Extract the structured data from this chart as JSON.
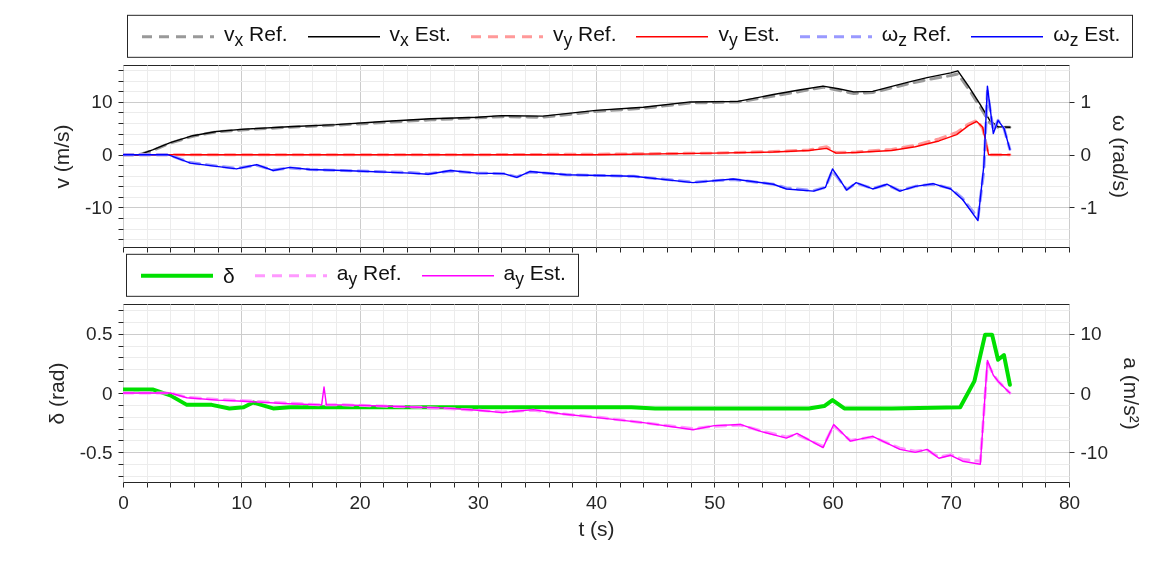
{
  "chart_data": [
    {
      "type": "line",
      "ylabel": "v (m/s)",
      "y2label": "ω (rad/s)",
      "xlim": [
        0,
        80
      ],
      "xticks": [
        0,
        {
          "value": 2,
          "label": null
        },
        {
          "value": 4,
          "label": null
        },
        {
          "value": 6,
          "label": null
        },
        {
          "value": 8,
          "label": null
        },
        10,
        {
          "value": 12,
          "label": null
        },
        {
          "value": 14,
          "label": null
        },
        {
          "value": 16,
          "label": null
        },
        {
          "value": 18,
          "label": null
        },
        20,
        {
          "value": 22,
          "label": null
        },
        {
          "value": 24,
          "label": null
        },
        {
          "value": 26,
          "label": null
        },
        {
          "value": 28,
          "label": null
        },
        30,
        {
          "value": 32,
          "label": null
        },
        {
          "value": 34,
          "label": null
        },
        {
          "value": 36,
          "label": null
        },
        {
          "value": 38,
          "label": null
        },
        40,
        {
          "value": 42,
          "label": null
        },
        {
          "value": 44,
          "label": null
        },
        {
          "value": 46,
          "label": null
        },
        {
          "value": 48,
          "label": null
        },
        50,
        {
          "value": 52,
          "label": null
        },
        {
          "value": 54,
          "label": null
        },
        {
          "value": 56,
          "label": null
        },
        {
          "value": 58,
          "label": null
        },
        60,
        {
          "value": 62,
          "label": null
        },
        {
          "value": 64,
          "label": null
        },
        {
          "value": 66,
          "label": null
        },
        {
          "value": 68,
          "label": null
        },
        70,
        {
          "value": 72,
          "label": null
        },
        {
          "value": 74,
          "label": null
        },
        {
          "value": 76,
          "label": null
        },
        {
          "value": 78,
          "label": null
        },
        80
      ],
      "ylim": [
        -17.5,
        17
      ],
      "yticks": [
        {
          "value": -16,
          "label": null
        },
        {
          "value": -14,
          "label": null
        },
        {
          "value": -12,
          "label": null
        },
        -10,
        {
          "value": -8,
          "label": null
        },
        {
          "value": -6,
          "label": null
        },
        {
          "value": -4,
          "label": null
        },
        {
          "value": -2,
          "label": null
        },
        0,
        {
          "value": 2,
          "label": null
        },
        {
          "value": 4,
          "label": null
        },
        {
          "value": 6,
          "label": null
        },
        {
          "value": 8,
          "label": null
        },
        10,
        {
          "value": 12,
          "label": null
        },
        {
          "value": 14,
          "label": null
        },
        {
          "value": 16,
          "label": null
        }
      ],
      "y2lim": [
        -1.75,
        1.7
      ],
      "y2ticks": [
        -1,
        0,
        1
      ],
      "grid": true,
      "legend": "top",
      "tick_labels": "y",
      "series": [
        {
          "name": "v$_{x}$ Ref.",
          "color": "#999999",
          "line_style": "dashed",
          "x": [
            0,
            1.4,
            2.5,
            4,
            5.9,
            7.9,
            10,
            14,
            18,
            22,
            26,
            30,
            32,
            35.5,
            40,
            44,
            48,
            52,
            55,
            57.3,
            59.2,
            60.5,
            61.8,
            63.4,
            65.1,
            66.5,
            68,
            70,
            70.6,
            71.5,
            72.5,
            73.3,
            74,
            75
          ],
          "values": [
            0,
            0,
            0.8,
            2.2,
            3.5,
            4.3,
            4.7,
            5.2,
            5.6,
            6.1,
            6.6,
            7.0,
            7.2,
            7.1,
            8.2,
            8.8,
            9.8,
            10.0,
            11.1,
            12.0,
            12.8,
            12.2,
            11.6,
            11.8,
            12.7,
            13.5,
            14.2,
            15.0,
            15.3,
            12.5,
            9,
            6,
            5.2,
            5.2
          ]
        },
        {
          "name": "v$_{x}$ Est.",
          "color": "#000000",
          "x": [
            0,
            1.4,
            2.5,
            4,
            5.9,
            7.9,
            10,
            14,
            18,
            22,
            26,
            30,
            32,
            35.5,
            40,
            44,
            48,
            52,
            55,
            57.3,
            59.2,
            60.5,
            61.8,
            63.4,
            65.1,
            66.5,
            68,
            70,
            70.6,
            71.5,
            72.5,
            73.3,
            74,
            75
          ],
          "values": [
            0,
            0,
            0.9,
            2.3,
            3.6,
            4.4,
            4.8,
            5.3,
            5.7,
            6.3,
            6.8,
            7.1,
            7.4,
            7.3,
            8.4,
            9.0,
            10.0,
            10.1,
            11.4,
            12.3,
            13.0,
            12.5,
            11.9,
            12.0,
            13.0,
            13.8,
            14.6,
            15.5,
            15.9,
            13,
            9.5,
            6.5,
            5.3,
            5.2
          ]
        },
        {
          "name": "v$_{y}$ Ref.",
          "color": "#ff9999",
          "line_style": "dashed",
          "x": [
            0,
            10,
            20,
            30,
            40,
            50,
            55,
            58,
            59.5,
            60.3,
            62,
            65,
            67,
            69,
            70.5,
            71.5,
            72.2,
            72.7,
            73.2,
            74,
            75
          ],
          "values": [
            0,
            0,
            0,
            0,
            0.1,
            0.3,
            0.6,
            0.9,
            1.5,
            0.4,
            0.5,
            1.0,
            1.8,
            3.0,
            4.2,
            5.8,
            6.5,
            5.0,
            0,
            0,
            0
          ]
        },
        {
          "name": "v$_{y}$ Est.",
          "color": "#ff0000",
          "x": [
            0,
            10,
            20,
            30,
            40,
            50,
            55,
            58,
            59.5,
            60.3,
            62,
            65,
            67,
            69,
            70.5,
            71.5,
            72.2,
            72.7,
            73.2,
            74,
            75
          ],
          "values": [
            0,
            0,
            0,
            0,
            0,
            0.3,
            0.5,
            0.8,
            1.2,
            0.3,
            0.4,
            0.8,
            1.5,
            2.6,
            3.8,
            5.5,
            6.3,
            5.2,
            0,
            0,
            0
          ]
        },
        {
          "name": "ω$_{z}$ Ref.",
          "color": "#9999ff",
          "line_style": "dashed",
          "axis": "y2",
          "x": [
            0,
            3.8,
            5.7,
            9.6,
            11.3,
            12.7,
            14.1,
            15.8,
            18.6,
            24.3,
            25.8,
            27.7,
            29.9,
            32.2,
            33.3,
            34.4,
            37.5,
            43.2,
            48.2,
            51.6,
            55,
            56.1,
            58.4,
            59.4,
            60,
            61.2,
            62,
            63.4,
            64.6,
            65.7,
            67,
            68.5,
            70,
            71,
            72.3,
            72.8,
            73.1,
            73.6,
            74,
            74.5,
            75
          ],
          "values": [
            0,
            0,
            -0.15,
            -0.26,
            -0.2,
            -0.29,
            -0.25,
            -0.28,
            -0.3,
            -0.34,
            -0.36,
            -0.31,
            -0.35,
            -0.36,
            -0.42,
            -0.33,
            -0.38,
            -0.41,
            -0.52,
            -0.47,
            -0.56,
            -0.63,
            -0.68,
            -0.62,
            -0.3,
            -0.66,
            -0.54,
            -0.64,
            -0.57,
            -0.68,
            -0.6,
            -0.56,
            -0.64,
            -0.83,
            -1.2,
            -0.3,
            1.2,
            0.45,
            0.65,
            0.5,
            0.1
          ]
        },
        {
          "name": "ω$_{z}$ Est.",
          "color": "#0000ff",
          "axis": "y2",
          "x": [
            0,
            3.8,
            5.7,
            9.6,
            11.3,
            12.7,
            14.1,
            15.8,
            18.6,
            24.3,
            25.8,
            27.7,
            29.9,
            32.2,
            33.3,
            34.4,
            37.5,
            43.2,
            48.2,
            51.6,
            55,
            56.1,
            58.4,
            59.4,
            60,
            61.2,
            62,
            63.4,
            64.6,
            65.7,
            67,
            68.5,
            70,
            71,
            72.3,
            72.8,
            73.1,
            73.6,
            74,
            74.5,
            75
          ],
          "values": [
            0,
            0,
            -0.16,
            -0.27,
            -0.19,
            -0.3,
            -0.24,
            -0.28,
            -0.3,
            -0.35,
            -0.37,
            -0.3,
            -0.35,
            -0.36,
            -0.43,
            -0.32,
            -0.38,
            -0.41,
            -0.53,
            -0.46,
            -0.56,
            -0.65,
            -0.69,
            -0.62,
            -0.27,
            -0.67,
            -0.53,
            -0.65,
            -0.56,
            -0.69,
            -0.6,
            -0.55,
            -0.65,
            -0.85,
            -1.25,
            -0.2,
            1.3,
            0.4,
            0.65,
            0.5,
            0.1
          ]
        }
      ]
    },
    {
      "type": "line",
      "xlabel": "t (s)",
      "ylabel": "δ (rad)",
      "y2label": "a (m/s²)",
      "xlim": [
        0,
        80
      ],
      "xticks": [
        0,
        {
          "value": 2,
          "label": null
        },
        {
          "value": 4,
          "label": null
        },
        {
          "value": 6,
          "label": null
        },
        {
          "value": 8,
          "label": null
        },
        10,
        {
          "value": 12,
          "label": null
        },
        {
          "value": 14,
          "label": null
        },
        {
          "value": 16,
          "label": null
        },
        {
          "value": 18,
          "label": null
        },
        20,
        {
          "value": 22,
          "label": null
        },
        {
          "value": 24,
          "label": null
        },
        {
          "value": 26,
          "label": null
        },
        {
          "value": 28,
          "label": null
        },
        30,
        {
          "value": 32,
          "label": null
        },
        {
          "value": 34,
          "label": null
        },
        {
          "value": 36,
          "label": null
        },
        {
          "value": 38,
          "label": null
        },
        40,
        {
          "value": 42,
          "label": null
        },
        {
          "value": 44,
          "label": null
        },
        {
          "value": 46,
          "label": null
        },
        {
          "value": 48,
          "label": null
        },
        50,
        {
          "value": 52,
          "label": null
        },
        {
          "value": 54,
          "label": null
        },
        {
          "value": 56,
          "label": null
        },
        {
          "value": 58,
          "label": null
        },
        60,
        {
          "value": 62,
          "label": null
        },
        {
          "value": 64,
          "label": null
        },
        {
          "value": 66,
          "label": null
        },
        {
          "value": 68,
          "label": null
        },
        70,
        {
          "value": 72,
          "label": null
        },
        {
          "value": 74,
          "label": null
        },
        {
          "value": 76,
          "label": null
        },
        {
          "value": 78,
          "label": null
        },
        80
      ],
      "ylim": [
        -0.75,
        0.75
      ],
      "yticks": [
        {
          "value": -0.7,
          "label": null
        },
        {
          "value": -0.6,
          "label": null
        },
        -0.5,
        {
          "value": -0.4,
          "label": null
        },
        {
          "value": -0.3,
          "label": null
        },
        {
          "value": -0.2,
          "label": null
        },
        {
          "value": -0.1,
          "label": null
        },
        0,
        {
          "value": 0.1,
          "label": null
        },
        {
          "value": 0.2,
          "label": null
        },
        {
          "value": 0.3,
          "label": null
        },
        {
          "value": 0.4,
          "label": null
        },
        0.5,
        {
          "value": 0.6,
          "label": null
        },
        {
          "value": 0.7,
          "label": null
        }
      ],
      "y2lim": [
        -15,
        15
      ],
      "y2ticks": [
        -10,
        0,
        10
      ],
      "grid": true,
      "legend": "top left",
      "series": [
        {
          "name": "δ",
          "color": "#00e000",
          "x": [
            0,
            2.5,
            4,
            5.4,
            7.5,
            9,
            10.2,
            11,
            12.7,
            14.1,
            18.6,
            25,
            30,
            35,
            43,
            45,
            58,
            59.3,
            60,
            61,
            65,
            70.8,
            72,
            72.9,
            73.5,
            74,
            74.5,
            75
          ],
          "values": [
            0.03,
            0.03,
            -0.02,
            -0.1,
            -0.1,
            -0.13,
            -0.12,
            -0.08,
            -0.13,
            -0.12,
            -0.12,
            -0.12,
            -0.12,
            -0.12,
            -0.12,
            -0.13,
            -0.13,
            -0.11,
            -0.06,
            -0.13,
            -0.13,
            -0.12,
            0.1,
            0.49,
            0.49,
            0.28,
            0.32,
            0.07
          ]
        },
        {
          "name": "a$_{y}$ Ref.",
          "color": "#ff99ff",
          "line_style": "dashed",
          "axis": "y2",
          "x": [
            0,
            4,
            5.4,
            8,
            10.2,
            14,
            16.8,
            17,
            17.2,
            18.6,
            22,
            25,
            27.1,
            30,
            32.1,
            34.7,
            37,
            40.3,
            44,
            48.2,
            50,
            52.2,
            54,
            56.1,
            57,
            59.2,
            60.1,
            61.5,
            63.4,
            65.7,
            67,
            68,
            69,
            70,
            71,
            72.5,
            73.1,
            73.6,
            74,
            75
          ],
          "values": [
            0,
            0,
            -0.7,
            -1.1,
            -1.3,
            -1.7,
            -2.0,
            -1.9,
            -2.0,
            -2.0,
            -2.2,
            -2.4,
            -2.6,
            -2.9,
            -3.2,
            -2.9,
            -3.5,
            -4.1,
            -5.0,
            -6.0,
            -5.6,
            -5.4,
            -6.4,
            -7.4,
            -7.0,
            -9.0,
            -5.5,
            -8.0,
            -7.4,
            -9.3,
            -9.8,
            -9.6,
            -10.8,
            -10.4,
            -11.2,
            -11.5,
            5,
            3.2,
            2,
            0
          ]
        },
        {
          "name": "a$_{y}$ Est.",
          "color": "#ff00ff",
          "axis": "y2",
          "x": [
            0,
            4,
            5.4,
            8,
            10.2,
            14,
            16.8,
            17,
            17.2,
            18.6,
            22,
            25,
            27.1,
            30,
            32.1,
            34.7,
            37,
            40.3,
            44,
            48.2,
            50,
            52.2,
            54,
            56.1,
            57,
            59.2,
            60.1,
            61.5,
            63.4,
            65.7,
            67,
            68,
            69,
            70,
            71,
            72.5,
            73.1,
            73.6,
            74,
            75
          ],
          "values": [
            0,
            0,
            -0.8,
            -1.2,
            -1.4,
            -1.8,
            -2.0,
            1.0,
            -2.0,
            -2.0,
            -2.2,
            -2.4,
            -2.5,
            -2.9,
            -3.3,
            -2.8,
            -3.5,
            -4.2,
            -5.0,
            -6.2,
            -5.5,
            -5.3,
            -6.5,
            -7.6,
            -6.8,
            -9.2,
            -5.3,
            -8.1,
            -7.3,
            -9.5,
            -10,
            -9.5,
            -11,
            -10.5,
            -11.5,
            -12,
            5.5,
            3,
            2,
            0
          ]
        }
      ]
    }
  ]
}
